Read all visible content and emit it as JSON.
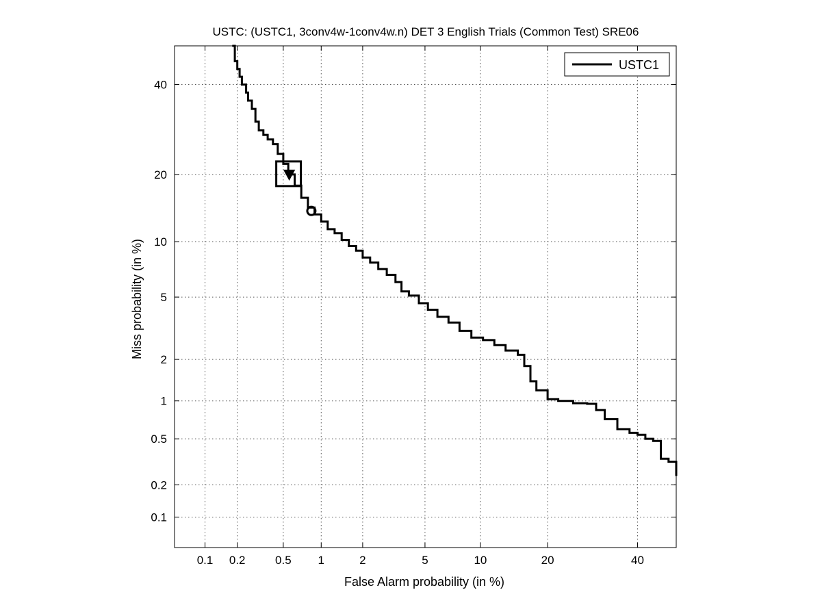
{
  "chart_data": {
    "type": "line",
    "title": "USTC: (USTC1, 3conv4w-1conv4w.n) DET 3 English Trials (Common Test) SRE06",
    "xlabel": "False Alarm probability (in %)",
    "ylabel": "Miss probability (in %)",
    "x_scale": "normal-deviate",
    "y_scale": "normal-deviate",
    "xlim": [
      0.05,
      50
    ],
    "ylim": [
      0.05,
      50
    ],
    "xticks": [
      {
        "value": 0.1,
        "label": "0.1"
      },
      {
        "value": 0.2,
        "label": "0.2"
      },
      {
        "value": 0.5,
        "label": "0.5"
      },
      {
        "value": 1,
        "label": "1"
      },
      {
        "value": 2,
        "label": "2"
      },
      {
        "value": 5,
        "label": "5"
      },
      {
        "value": 10,
        "label": "10"
      },
      {
        "value": 20,
        "label": "20"
      },
      {
        "value": 40,
        "label": "40"
      }
    ],
    "yticks": [
      {
        "value": 0.1,
        "label": "0.1"
      },
      {
        "value": 0.2,
        "label": "0.2"
      },
      {
        "value": 0.5,
        "label": "0.5"
      },
      {
        "value": 1,
        "label": "1"
      },
      {
        "value": 2,
        "label": "2"
      },
      {
        "value": 5,
        "label": "5"
      },
      {
        "value": 10,
        "label": "10"
      },
      {
        "value": 20,
        "label": "20"
      },
      {
        "value": 40,
        "label": "40"
      }
    ],
    "grid": true,
    "legend": {
      "position": "top-right",
      "entries": [
        "USTC1"
      ]
    },
    "series": [
      {
        "name": "USTC1",
        "color": "#000000",
        "fa": [
          0.18,
          0.19,
          0.2,
          0.21,
          0.22,
          0.24,
          0.25,
          0.27,
          0.29,
          0.31,
          0.34,
          0.37,
          0.41,
          0.45,
          0.5,
          0.55,
          0.62,
          0.7,
          0.79,
          0.89,
          1.0,
          1.12,
          1.26,
          1.42,
          1.6,
          1.8,
          2.0,
          2.25,
          2.55,
          2.9,
          3.3,
          3.6,
          4.0,
          4.6,
          5.2,
          5.9,
          6.8,
          7.8,
          9.0,
          10.3,
          11.7,
          13.2,
          15.0,
          16.0,
          17.0,
          18.0,
          20.0,
          22.0,
          25.0,
          28.0,
          30.0,
          32.0,
          35.0,
          38.0,
          40.0,
          42.0,
          44.0,
          46.0,
          48.0,
          50.0
        ],
        "miss": [
          50.0,
          46.0,
          44.0,
          42.0,
          40.0,
          38.0,
          36.0,
          34.0,
          31.0,
          29.0,
          28.0,
          27.0,
          26.0,
          24.0,
          22.0,
          20.0,
          18.0,
          16.0,
          14.5,
          13.5,
          12.5,
          11.5,
          11.0,
          10.2,
          9.5,
          9.0,
          8.3,
          7.8,
          7.2,
          6.7,
          6.1,
          5.4,
          5.1,
          4.6,
          4.2,
          3.8,
          3.5,
          3.1,
          2.8,
          2.7,
          2.5,
          2.3,
          2.15,
          1.8,
          1.4,
          1.2,
          1.03,
          1.0,
          0.96,
          0.95,
          0.85,
          0.72,
          0.6,
          0.56,
          0.54,
          0.5,
          0.48,
          0.34,
          0.32,
          0.24
        ]
      }
    ],
    "annotations": [
      {
        "kind": "actual-dcf-point-triangle",
        "fa": 0.56,
        "miss": 20.0
      },
      {
        "kind": "min-dcf-box",
        "fa": 0.56,
        "miss": 20.0
      },
      {
        "kind": "eer-like-point-circle",
        "fa": 0.84,
        "miss": 14.0
      }
    ]
  }
}
